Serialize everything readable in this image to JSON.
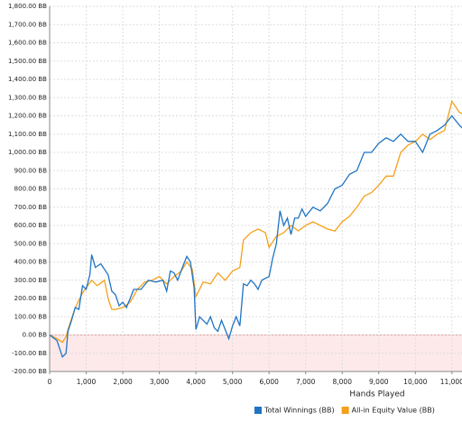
{
  "chart_data": {
    "type": "line",
    "xlabel": "Hands Played",
    "xlim": [
      0,
      11300
    ],
    "xticks": [
      0,
      {
        "value": 1000,
        "label": "1,000"
      },
      {
        "value": 2000,
        "label": "2,000"
      },
      {
        "value": 3000,
        "label": "3,000"
      },
      {
        "value": 4000,
        "label": "4,000"
      },
      {
        "value": 5000,
        "label": "5,000"
      },
      {
        "value": 6000,
        "label": "6,000"
      },
      {
        "value": 7000,
        "label": "7,000"
      },
      {
        "value": 8000,
        "label": "8,000"
      },
      {
        "value": 9000,
        "label": "9,000"
      },
      {
        "value": 10000,
        "label": "10,000"
      },
      {
        "value": 11000,
        "label": "11,000"
      }
    ],
    "ylim": [
      -200,
      1800
    ],
    "yticks": [
      {
        "value": -200,
        "label": "-200.00 BB"
      },
      {
        "value": -100,
        "label": "-100.00 BB"
      },
      {
        "value": 0,
        "label": "0.00 BB"
      },
      {
        "value": 100,
        "label": "100.00 BB"
      },
      {
        "value": 200,
        "label": "200.00 BB"
      },
      {
        "value": 300,
        "label": "300.00 BB"
      },
      {
        "value": 400,
        "label": "400.00 BB"
      },
      {
        "value": 500,
        "label": "500.00 BB"
      },
      {
        "value": 600,
        "label": "600.00 BB"
      },
      {
        "value": 700,
        "label": "700.00 BB"
      },
      {
        "value": 800,
        "label": "800.00 BB"
      },
      {
        "value": 900,
        "label": "900.00 BB"
      },
      {
        "value": 1000,
        "label": "1,000.00 BB"
      },
      {
        "value": 1100,
        "label": "1,100.00 BB"
      },
      {
        "value": 1200,
        "label": "1,200.00 BB"
      },
      {
        "value": 1300,
        "label": "1,300.00 BB"
      },
      {
        "value": 1400,
        "label": "1,400.00 BB"
      },
      {
        "value": 1500,
        "label": "1,500.00 BB"
      },
      {
        "value": 1600,
        "label": "1,600.00 BB"
      },
      {
        "value": 1700,
        "label": "1,700.00 BB"
      },
      {
        "value": 1800,
        "label": "1,800.00 BB"
      }
    ],
    "grid": true,
    "legend": "bottom-right",
    "series": [
      {
        "name": "Total Winnings (BB)",
        "color": "#1f74c4",
        "x": [
          0,
          200,
          350,
          450,
          500,
          600,
          700,
          800,
          900,
          1000,
          1100,
          1150,
          1250,
          1400,
          1500,
          1600,
          1700,
          1800,
          1900,
          2000,
          2100,
          2200,
          2300,
          2500,
          2700,
          2900,
          3100,
          3200,
          3300,
          3400,
          3500,
          3650,
          3750,
          3850,
          3950,
          4000,
          4100,
          4200,
          4300,
          4400,
          4500,
          4600,
          4700,
          4800,
          4900,
          5000,
          5100,
          5200,
          5300,
          5400,
          5500,
          5600,
          5700,
          5800,
          5900,
          6000,
          6100,
          6200,
          6300,
          6400,
          6500,
          6600,
          6700,
          6800,
          6900,
          7000,
          7200,
          7400,
          7600,
          7800,
          8000,
          8200,
          8400,
          8600,
          8800,
          9000,
          9200,
          9400,
          9600,
          9800,
          10000,
          10200,
          10400,
          10600,
          10800,
          11000,
          11200,
          11300
        ],
        "values": [
          0,
          -30,
          -120,
          -100,
          20,
          80,
          150,
          140,
          270,
          250,
          330,
          440,
          370,
          390,
          360,
          330,
          240,
          220,
          160,
          180,
          150,
          200,
          250,
          250,
          300,
          290,
          300,
          240,
          350,
          340,
          300,
          380,
          430,
          400,
          260,
          30,
          100,
          80,
          60,
          100,
          40,
          20,
          80,
          30,
          -20,
          50,
          100,
          50,
          280,
          270,
          300,
          280,
          250,
          300,
          310,
          320,
          420,
          500,
          680,
          600,
          640,
          550,
          640,
          640,
          690,
          650,
          700,
          680,
          720,
          800,
          820,
          880,
          900,
          1000,
          1000,
          1050,
          1080,
          1060,
          1100,
          1060,
          1060,
          1000,
          1100,
          1120,
          1150,
          1200,
          1150,
          1130
        ]
      },
      {
        "name": "All-in Equity Value (BB)",
        "color": "#f5a01a",
        "x": [
          0,
          200,
          350,
          450,
          500,
          700,
          900,
          1000,
          1150,
          1300,
          1500,
          1600,
          1700,
          1800,
          2000,
          2200,
          2400,
          2600,
          2800,
          3000,
          3200,
          3400,
          3600,
          3750,
          3900,
          4000,
          4200,
          4400,
          4600,
          4800,
          5000,
          5200,
          5300,
          5500,
          5700,
          5900,
          6000,
          6200,
          6400,
          6600,
          6800,
          7000,
          7200,
          7400,
          7600,
          7800,
          8000,
          8200,
          8400,
          8600,
          8800,
          9000,
          9200,
          9400,
          9600,
          9800,
          10000,
          10200,
          10400,
          10600,
          10800,
          11000,
          11200,
          11300
        ],
        "values": [
          0,
          -20,
          -40,
          -10,
          30,
          150,
          230,
          260,
          300,
          270,
          300,
          200,
          140,
          140,
          150,
          180,
          250,
          290,
          300,
          320,
          280,
          320,
          350,
          400,
          360,
          210,
          290,
          280,
          340,
          300,
          350,
          370,
          520,
          560,
          580,
          560,
          480,
          540,
          560,
          600,
          570,
          600,
          620,
          600,
          580,
          570,
          620,
          650,
          700,
          760,
          780,
          820,
          870,
          870,
          1000,
          1040,
          1060,
          1100,
          1070,
          1100,
          1120,
          1280,
          1220,
          1210
        ]
      }
    ]
  }
}
